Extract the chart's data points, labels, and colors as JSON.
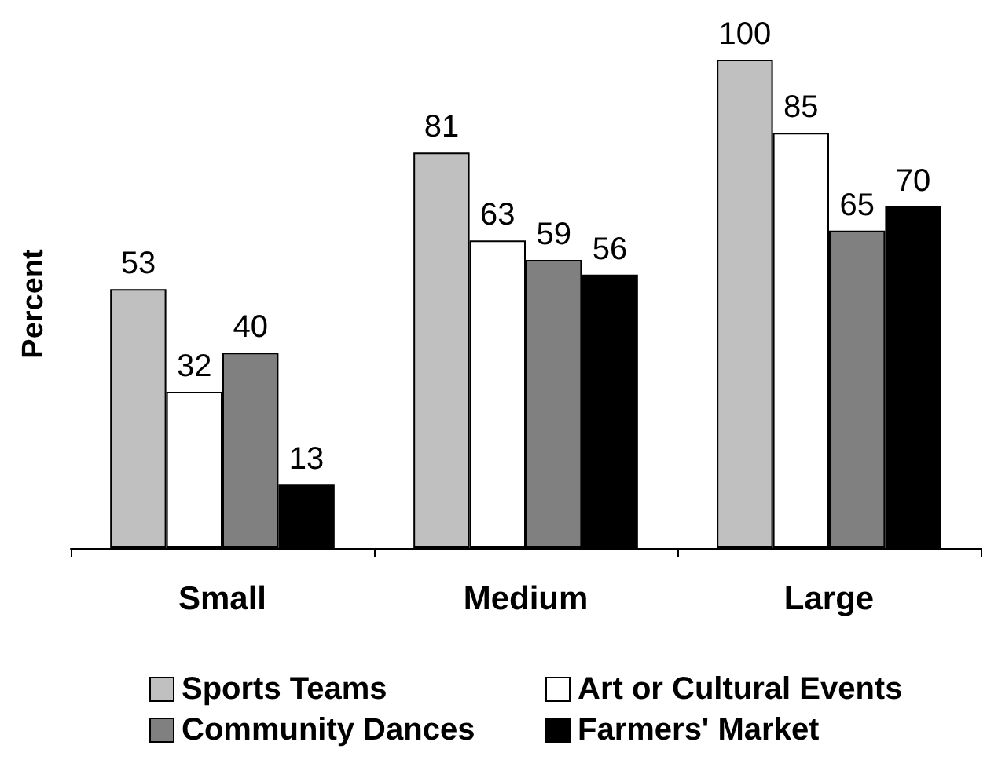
{
  "chart_data": {
    "type": "bar",
    "ylabel": "Percent",
    "categories": [
      "Small",
      "Medium",
      "Large"
    ],
    "series": [
      {
        "name": "Sports Teams",
        "color": "#c0c0c0",
        "values": [
          53,
          81,
          100
        ]
      },
      {
        "name": "Art or Cultural Events",
        "color": "#ffffff",
        "values": [
          32,
          63,
          85
        ]
      },
      {
        "name": "Community Dances",
        "color": "#808080",
        "values": [
          40,
          59,
          65
        ]
      },
      {
        "name": "Farmers' Market",
        "color": "#000000",
        "values": [
          13,
          56,
          70
        ]
      }
    ],
    "data_labels": true,
    "grid": false,
    "legend": "bottom"
  }
}
